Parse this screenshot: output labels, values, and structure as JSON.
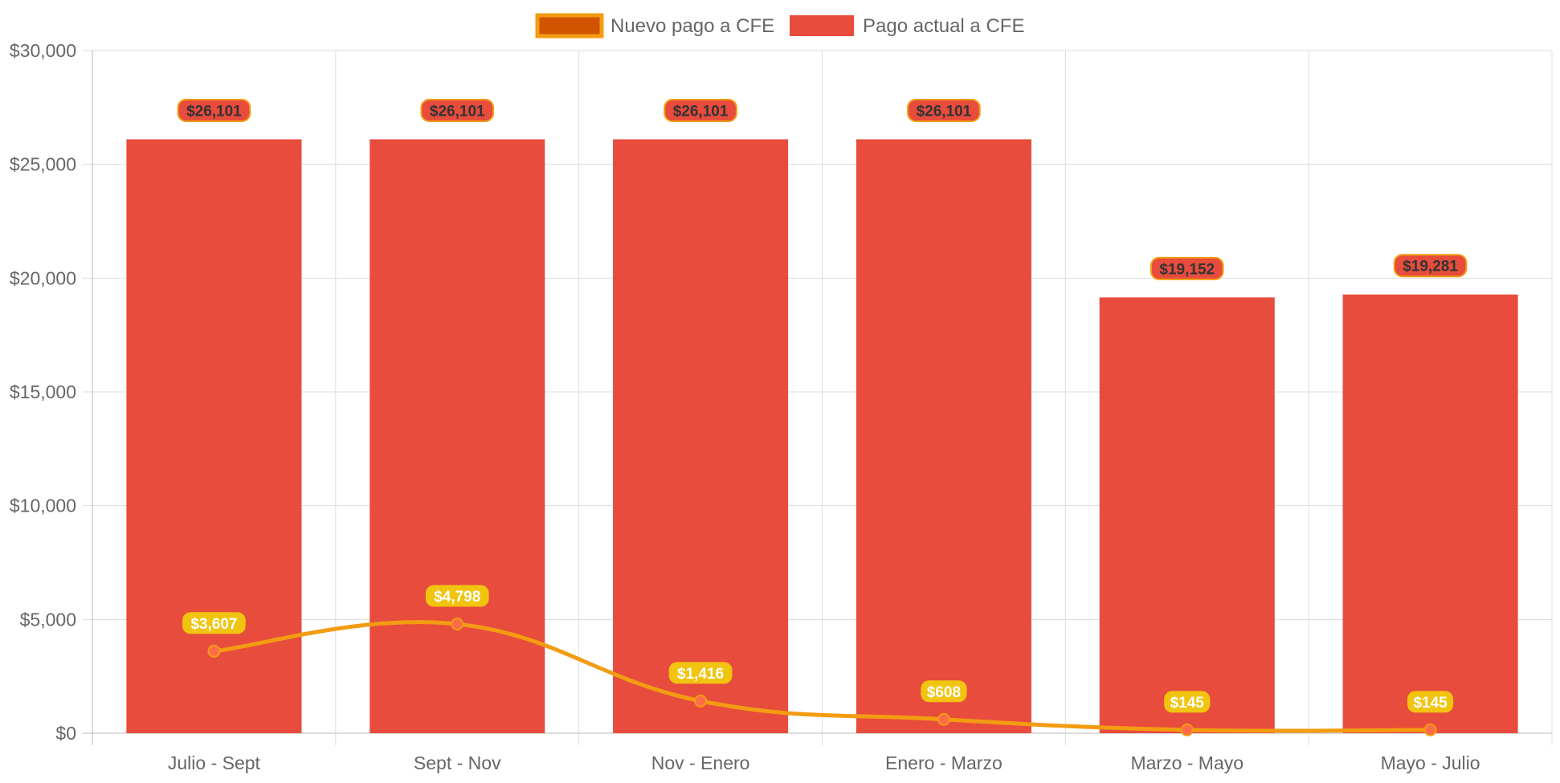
{
  "legend": [
    {
      "label": "Nuevo pago a CFE",
      "series": "nuevo"
    },
    {
      "label": "Pago actual a CFE",
      "series": "actual"
    }
  ],
  "colors": {
    "bar": "#e74c3c",
    "line": "#f39c12",
    "line_fill_swatch": "#d35400",
    "line_point": "#ff6b4a",
    "line_label_bg": "#f1c40f",
    "bar_label_border": "#f39c12",
    "grid": "#dddddd",
    "text": "#666666"
  },
  "chart_data": {
    "type": "bar",
    "categories": [
      "Julio - Sept",
      "Sept - Nov",
      "Nov - Enero",
      "Enero - Marzo",
      "Marzo - Mayo",
      "Mayo - Julio"
    ],
    "series": [
      {
        "name": "Pago actual a CFE",
        "type": "bar",
        "values": [
          26101,
          26101,
          26101,
          26101,
          19152,
          19281
        ],
        "labels": [
          "$26,101",
          "$26,101",
          "$26,101",
          "$26,101",
          "$19,152",
          "$19,281"
        ]
      },
      {
        "name": "Nuevo pago a CFE",
        "type": "line",
        "values": [
          3607,
          4798,
          1416,
          608,
          145,
          145
        ],
        "labels": [
          "$3,607",
          "$4,798",
          "$1,416",
          "$608",
          "$145",
          "$145"
        ]
      }
    ],
    "ylim": [
      0,
      30000
    ],
    "yticks": [
      "$0",
      "$5,000",
      "$10,000",
      "$15,000",
      "$20,000",
      "$25,000",
      "$30,000"
    ],
    "grid": true,
    "legend_position": "top-center",
    "xlabel": "",
    "ylabel": ""
  }
}
